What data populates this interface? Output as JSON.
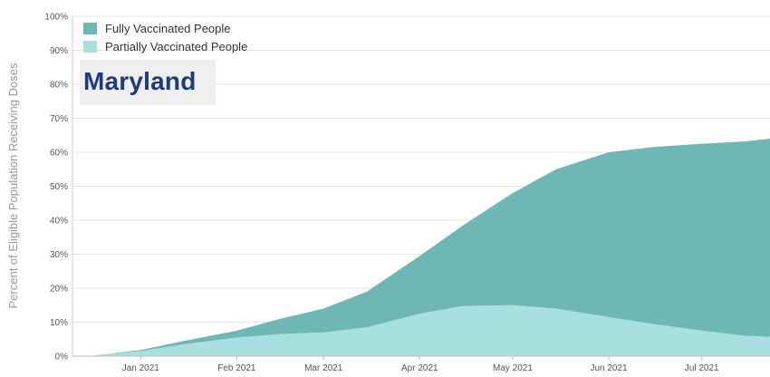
{
  "chart_data": {
    "type": "area",
    "stacked": true,
    "title": "Maryland",
    "ylabel": "Percent of Eligible Population Receiving Doses",
    "ylim": [
      0,
      100
    ],
    "grid": true,
    "legend_position": "top-left",
    "yticks": [
      "0%",
      "10%",
      "20%",
      "30%",
      "40%",
      "50%",
      "60%",
      "70%",
      "80%",
      "90%",
      "100%"
    ],
    "xticks": [
      {
        "label": "Jan 2021",
        "date": "2021-01-01"
      },
      {
        "label": "Feb 2021",
        "date": "2021-02-01"
      },
      {
        "label": "Mar 2021",
        "date": "2021-03-01"
      },
      {
        "label": "Apr 2021",
        "date": "2021-04-01"
      },
      {
        "label": "May 2021",
        "date": "2021-05-01"
      },
      {
        "label": "Jun 2021",
        "date": "2021-06-01"
      },
      {
        "label": "Jul 2021",
        "date": "2021-07-01"
      }
    ],
    "x_range": [
      "2020-12-10",
      "2021-07-23"
    ],
    "x": [
      "2020-12-15",
      "2021-01-01",
      "2021-01-15",
      "2021-02-01",
      "2021-02-15",
      "2021-03-01",
      "2021-03-15",
      "2021-04-01",
      "2021-04-15",
      "2021-05-01",
      "2021-05-15",
      "2021-06-01",
      "2021-06-15",
      "2021-07-01",
      "2021-07-15",
      "2021-07-23"
    ],
    "series": [
      {
        "name": "Partially Vaccinated People",
        "color": "#a8e0e0",
        "values": [
          0,
          1.5,
          3.5,
          5.5,
          6.5,
          7.0,
          8.5,
          12.5,
          14.8,
          15.0,
          14.0,
          11.5,
          9.5,
          7.5,
          6.0,
          5.7
        ]
      },
      {
        "name": "Fully Vaccinated People",
        "color": "#6fb7b5",
        "values": [
          0,
          0.3,
          1.0,
          2.0,
          4.5,
          7.0,
          10.5,
          17.0,
          23.7,
          33.0,
          41.0,
          48.5,
          52.0,
          55.0,
          57.2,
          58.3
        ]
      }
    ]
  }
}
